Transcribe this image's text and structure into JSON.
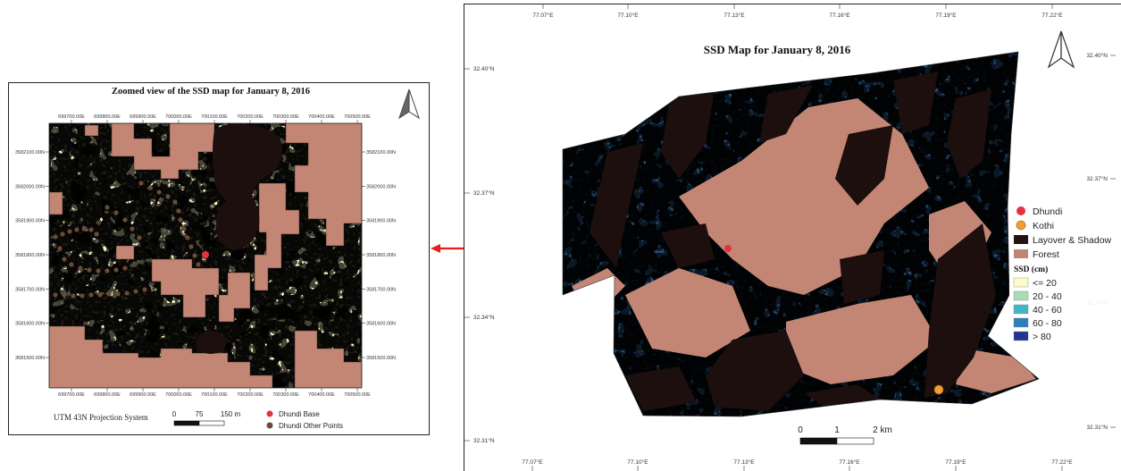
{
  "zoom": {
    "title": "Zoomed view of the SSD map for January 8, 2016",
    "x_ticks": [
      "699700.00E",
      "699800.00E",
      "699900.00E",
      "700000.00E",
      "700100.00E",
      "700200.00E",
      "700300.00E",
      "700400.00E",
      "700500.00E"
    ],
    "y_ticks": [
      "3582100.00N",
      "3582000.00N",
      "3581900.00N",
      "3581800.00N",
      "3581700.00N",
      "3581600.00N",
      "3581500.00N"
    ],
    "projection": "UTM 43N Projection System",
    "scale_labels": [
      "0",
      "75",
      "150 m"
    ],
    "legend": [
      {
        "label": "Dhundi Base",
        "color": "#e5323f"
      },
      {
        "label": "Dhundi Other Points",
        "color": "#6b4b36"
      }
    ]
  },
  "main": {
    "title": "SSD Map for January 8, 2016",
    "lon_ticks": [
      "77.07°E",
      "77.10°E",
      "77.13°E",
      "77.16°E",
      "77.19°E",
      "77.22°E"
    ],
    "lat_ticks": [
      "32.40°N",
      "32.37°N",
      "32.34°N",
      "32.31°N"
    ],
    "scale_labels": [
      "0",
      "1",
      "2 km"
    ],
    "legend_points": [
      {
        "label": "Dhundi",
        "color": "#e5323f"
      },
      {
        "label": "Kothi",
        "color": "#f0a030"
      }
    ],
    "legend_masks": [
      {
        "label": "Layover & Shadow",
        "color": "#241312"
      },
      {
        "label": "Forest",
        "color": "#c08573"
      }
    ],
    "ssd_title": "SSD (cm)",
    "ssd_classes": [
      {
        "label": "<= 20",
        "color": "#fdfbc9"
      },
      {
        "label": "20 - 40",
        "color": "#a8dcb5"
      },
      {
        "label": "40 - 60",
        "color": "#41b6c4"
      },
      {
        "label": "60 - 80",
        "color": "#2c7fb8"
      },
      {
        "label": "> 80",
        "color": "#253494"
      }
    ]
  },
  "icons": [
    "north-arrow-icon",
    "arrow-left-icon"
  ]
}
